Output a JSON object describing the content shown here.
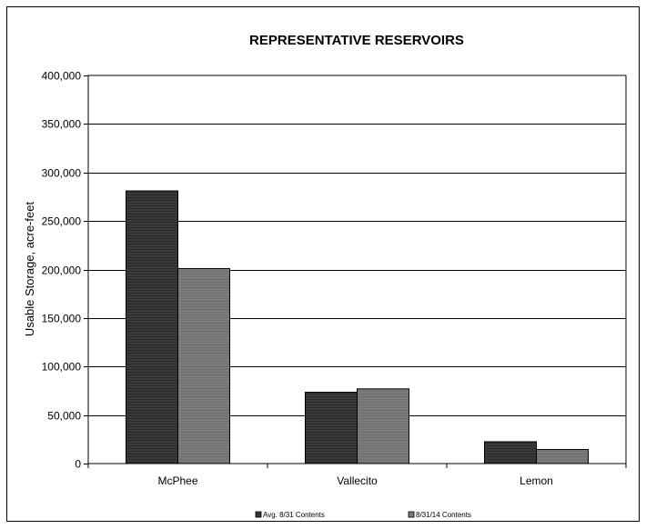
{
  "chart_data": {
    "type": "bar",
    "title": "REPRESENTATIVE RESERVOIRS",
    "xlabel": "",
    "ylabel": "Usable Storage, acre-feet",
    "categories": [
      "McPhee",
      "Vallecito",
      "Lemon"
    ],
    "series": [
      {
        "name": "Avg. 8/31 Contents",
        "values": [
          281000,
          73500,
          22500
        ],
        "color": "#3a3a3a"
      },
      {
        "name": "8/31/14 Contents",
        "values": [
          201000,
          77000,
          14500
        ],
        "color": "#7a7a7a"
      }
    ],
    "ylim": [
      0,
      400000
    ],
    "yticks": [
      0,
      50000,
      100000,
      150000,
      200000,
      250000,
      300000,
      350000,
      400000
    ],
    "ytick_labels": [
      "0",
      "50,000",
      "100,000",
      "150,000",
      "200,000",
      "250,000",
      "300,000",
      "350,000",
      "400,000"
    ],
    "grid": true,
    "legend_position": "bottom"
  }
}
